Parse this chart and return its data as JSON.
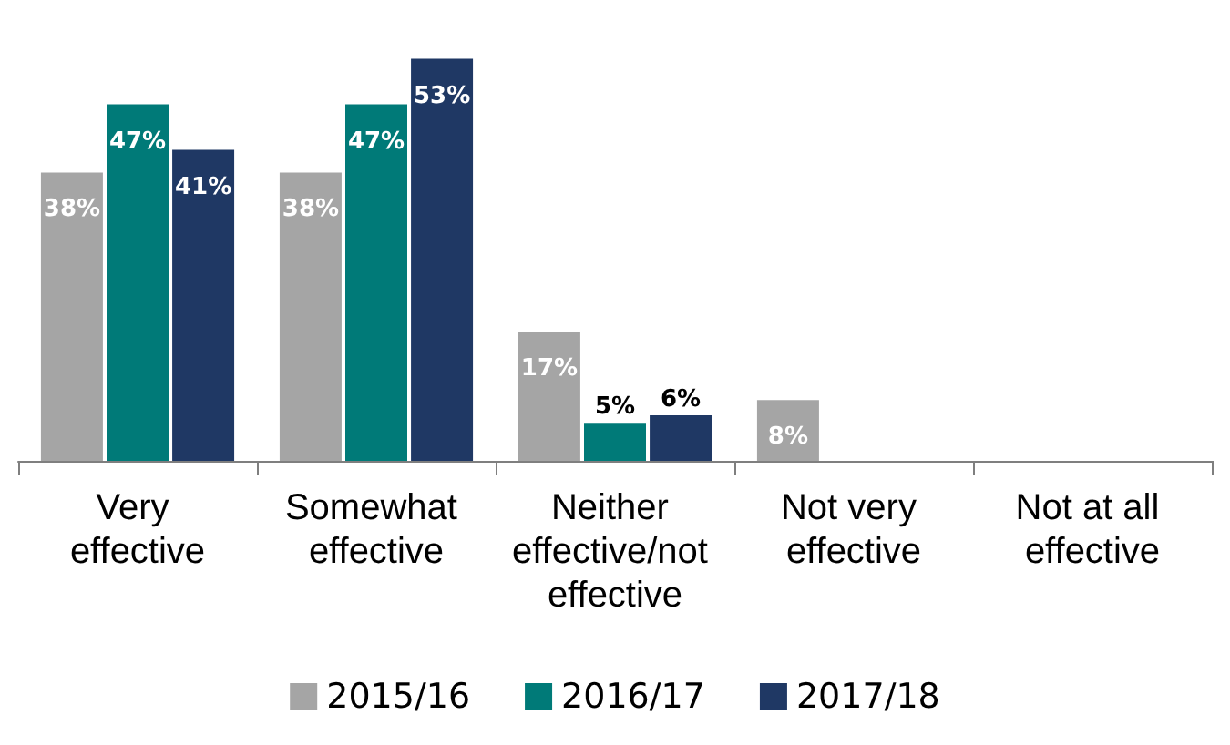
{
  "chart_data": {
    "type": "bar",
    "categories": [
      "Very effective",
      "Somewhat effective",
      "Neither effective/not effective",
      "Not very effective",
      "Not at all effective"
    ],
    "series": [
      {
        "name": "2015/16",
        "color": "#a5a5a5",
        "values": [
          38,
          38,
          17,
          8,
          null
        ],
        "value_labels": [
          "38%",
          "38%",
          "17%",
          "8%",
          null
        ]
      },
      {
        "name": "2016/17",
        "color": "#007a78",
        "values": [
          47,
          47,
          5,
          null,
          null
        ],
        "value_labels": [
          "47%",
          "47%",
          "5%",
          null,
          null
        ]
      },
      {
        "name": "2017/18",
        "color": "#1f3864",
        "values": [
          41,
          53,
          6,
          null,
          null
        ],
        "value_labels": [
          "41%",
          "53%",
          "6%",
          null,
          null
        ]
      }
    ],
    "legend": "bottom"
  }
}
